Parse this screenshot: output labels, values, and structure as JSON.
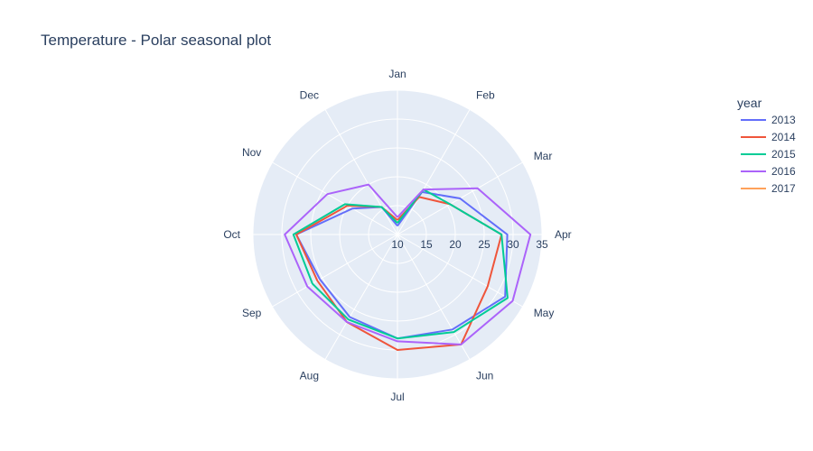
{
  "chart_data": {
    "type": "line",
    "subtype": "polar",
    "title": "Temperature - Polar seasonal plot",
    "angular_categories": [
      "Jan",
      "Feb",
      "Mar",
      "Apr",
      "May",
      "Jun",
      "Jul",
      "Aug",
      "Sep",
      "Oct",
      "Nov",
      "Dec"
    ],
    "angular_direction": "clockwise",
    "angular_start": "top",
    "radial_range": [
      10,
      35
    ],
    "radial_ticks": [
      "10",
      "15",
      "20",
      "25",
      "30",
      "35"
    ],
    "grid": true,
    "legend": {
      "title": "year",
      "position": "top-right"
    },
    "series": [
      {
        "name": "2013",
        "color": "#636efa",
        "values": [
          11.5,
          18.5,
          22.5,
          29.0,
          31.5,
          29.0,
          28.0,
          26.5,
          25.5,
          27.5,
          19.0,
          15.5
        ]
      },
      {
        "name": "2014",
        "color": "#ef553b",
        "values": [
          12.5,
          17.5,
          20.5,
          28.0,
          28.0,
          32.0,
          30.0,
          27.5,
          26.0,
          27.5,
          20.0,
          15.5
        ]
      },
      {
        "name": "2015",
        "color": "#00cc96",
        "values": [
          12.0,
          19.0,
          20.5,
          28.0,
          32.0,
          29.5,
          28.0,
          27.0,
          27.0,
          28.0,
          20.5,
          15.5
        ]
      },
      {
        "name": "2016",
        "color": "#ab63fa",
        "values": [
          13.0,
          19.0,
          26.0,
          33.0,
          33.0,
          32.0,
          28.5,
          27.5,
          28.0,
          29.5,
          24.0,
          20.0
        ]
      },
      {
        "name": "2017",
        "color": "#ffa15a",
        "values": []
      }
    ]
  }
}
